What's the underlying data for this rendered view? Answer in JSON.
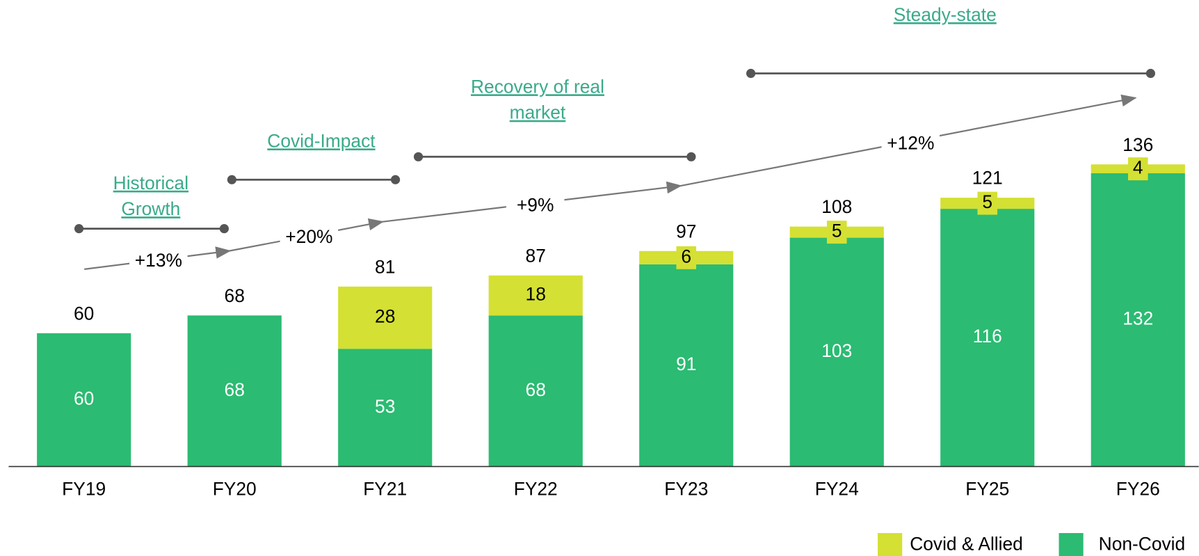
{
  "chart_data": {
    "type": "stacked_bar",
    "categories": [
      "FY19",
      "FY20",
      "FY21",
      "FY22",
      "FY23",
      "FY24",
      "FY25",
      "FY26"
    ],
    "series": [
      {
        "name": "Non-Covid",
        "color": "#2bbb72",
        "values": [
          60,
          68,
          53,
          68,
          91,
          103,
          116,
          132
        ]
      },
      {
        "name": "Covid & Allied",
        "color": "#d4e033",
        "values": [
          null,
          null,
          28,
          18,
          6,
          5,
          5,
          4
        ]
      }
    ],
    "totals": [
      60,
      68,
      81,
      87,
      97,
      108,
      121,
      136
    ],
    "ylim": [
      0,
      210
    ],
    "growth_labels": [
      "+13%",
      "+20%",
      "+9%",
      "+12%"
    ],
    "phases": [
      {
        "label": [
          "Historical",
          "Growth"
        ]
      },
      {
        "label": [
          "Covid-Impact"
        ]
      },
      {
        "label": [
          "Recovery of real",
          "market"
        ]
      },
      {
        "label": [
          "Steady-state"
        ]
      }
    ]
  }
}
